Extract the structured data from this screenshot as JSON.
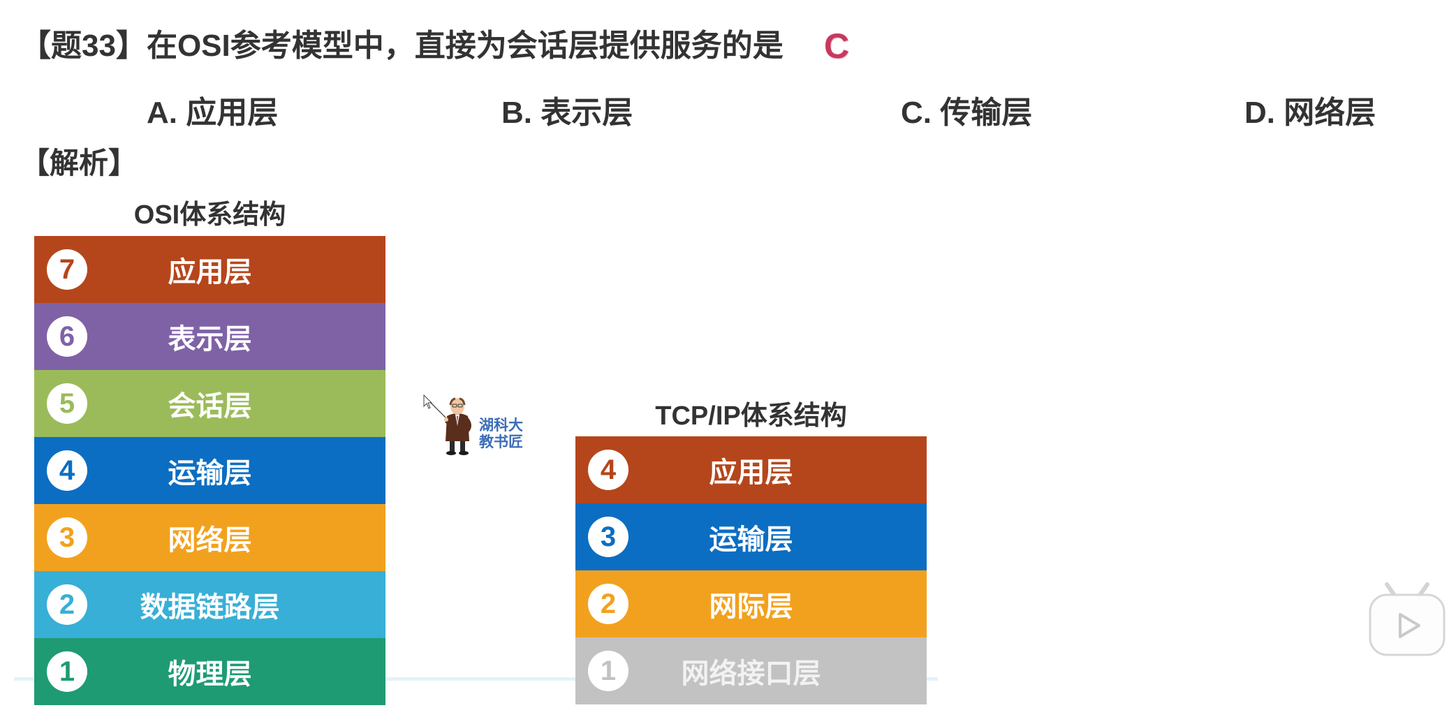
{
  "question": {
    "title": "【题33】在OSI参考模型中，直接为会话层提供服务的是",
    "answer": "C",
    "answer_color": "#C8385E"
  },
  "options": [
    {
      "label": "A. 应用层"
    },
    {
      "label": "B. 表示层"
    },
    {
      "label": "C. 传输层"
    },
    {
      "label": "D. 网络层"
    }
  ],
  "analysis_label": "【解析】",
  "osi": {
    "title": "OSI体系结构",
    "layers": [
      {
        "number": "7",
        "name": "应用层",
        "color": "#B5461C"
      },
      {
        "number": "6",
        "name": "表示层",
        "color": "#7F62A6"
      },
      {
        "number": "5",
        "name": "会话层",
        "color": "#9BBB5A"
      },
      {
        "number": "4",
        "name": "运输层",
        "color": "#0B6EC3"
      },
      {
        "number": "3",
        "name": "网络层",
        "color": "#F2A11E"
      },
      {
        "number": "2",
        "name": "数据链路层",
        "color": "#38AFD6"
      },
      {
        "number": "1",
        "name": "物理层",
        "color": "#1E9B73"
      }
    ]
  },
  "tcpip": {
    "title": "TCP/IP体系结构",
    "layers": [
      {
        "number": "4",
        "name": "应用层",
        "color": "#B5461C"
      },
      {
        "number": "3",
        "name": "运输层",
        "color": "#0B6EC3"
      },
      {
        "number": "2",
        "name": "网际层",
        "color": "#F2A11E"
      },
      {
        "number": "1",
        "name": "网络接口层",
        "color": "#C2C2C2"
      }
    ]
  },
  "mascot": {
    "line1": "湖科大",
    "line2": "教书匠",
    "text_color": "#3B6DB8"
  },
  "player": {
    "icon": "bilibili-play-icon"
  }
}
